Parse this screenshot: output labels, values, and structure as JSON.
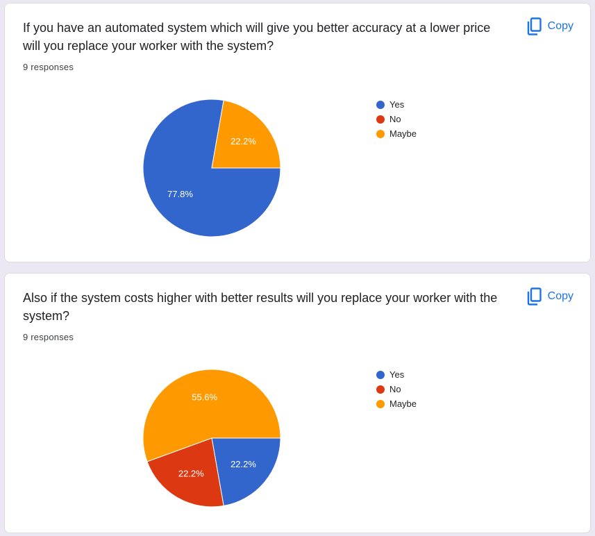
{
  "colors": {
    "Yes": "#3366cc",
    "No": "#dc3912",
    "Maybe": "#ff9900"
  },
  "cards": [
    {
      "question": "If you have an automated system which will give you better accuracy at a lower price will you replace your worker with the system?",
      "responses": "9 responses",
      "copy_label": "Copy"
    },
    {
      "question": "Also if the system costs higher with better results will you replace your worker with the system?",
      "responses": "9 responses",
      "copy_label": "Copy"
    }
  ],
  "chart_data": [
    {
      "type": "pie",
      "categories": [
        "Yes",
        "No",
        "Maybe"
      ],
      "values": [
        7,
        0,
        2
      ],
      "labels": [
        "77.8%",
        "",
        "22.2%"
      ],
      "legend_position": "right"
    },
    {
      "type": "pie",
      "categories": [
        "Yes",
        "No",
        "Maybe"
      ],
      "values": [
        2,
        2,
        5
      ],
      "labels": [
        "22.2%",
        "22.2%",
        "55.6%"
      ],
      "legend_position": "right"
    }
  ]
}
